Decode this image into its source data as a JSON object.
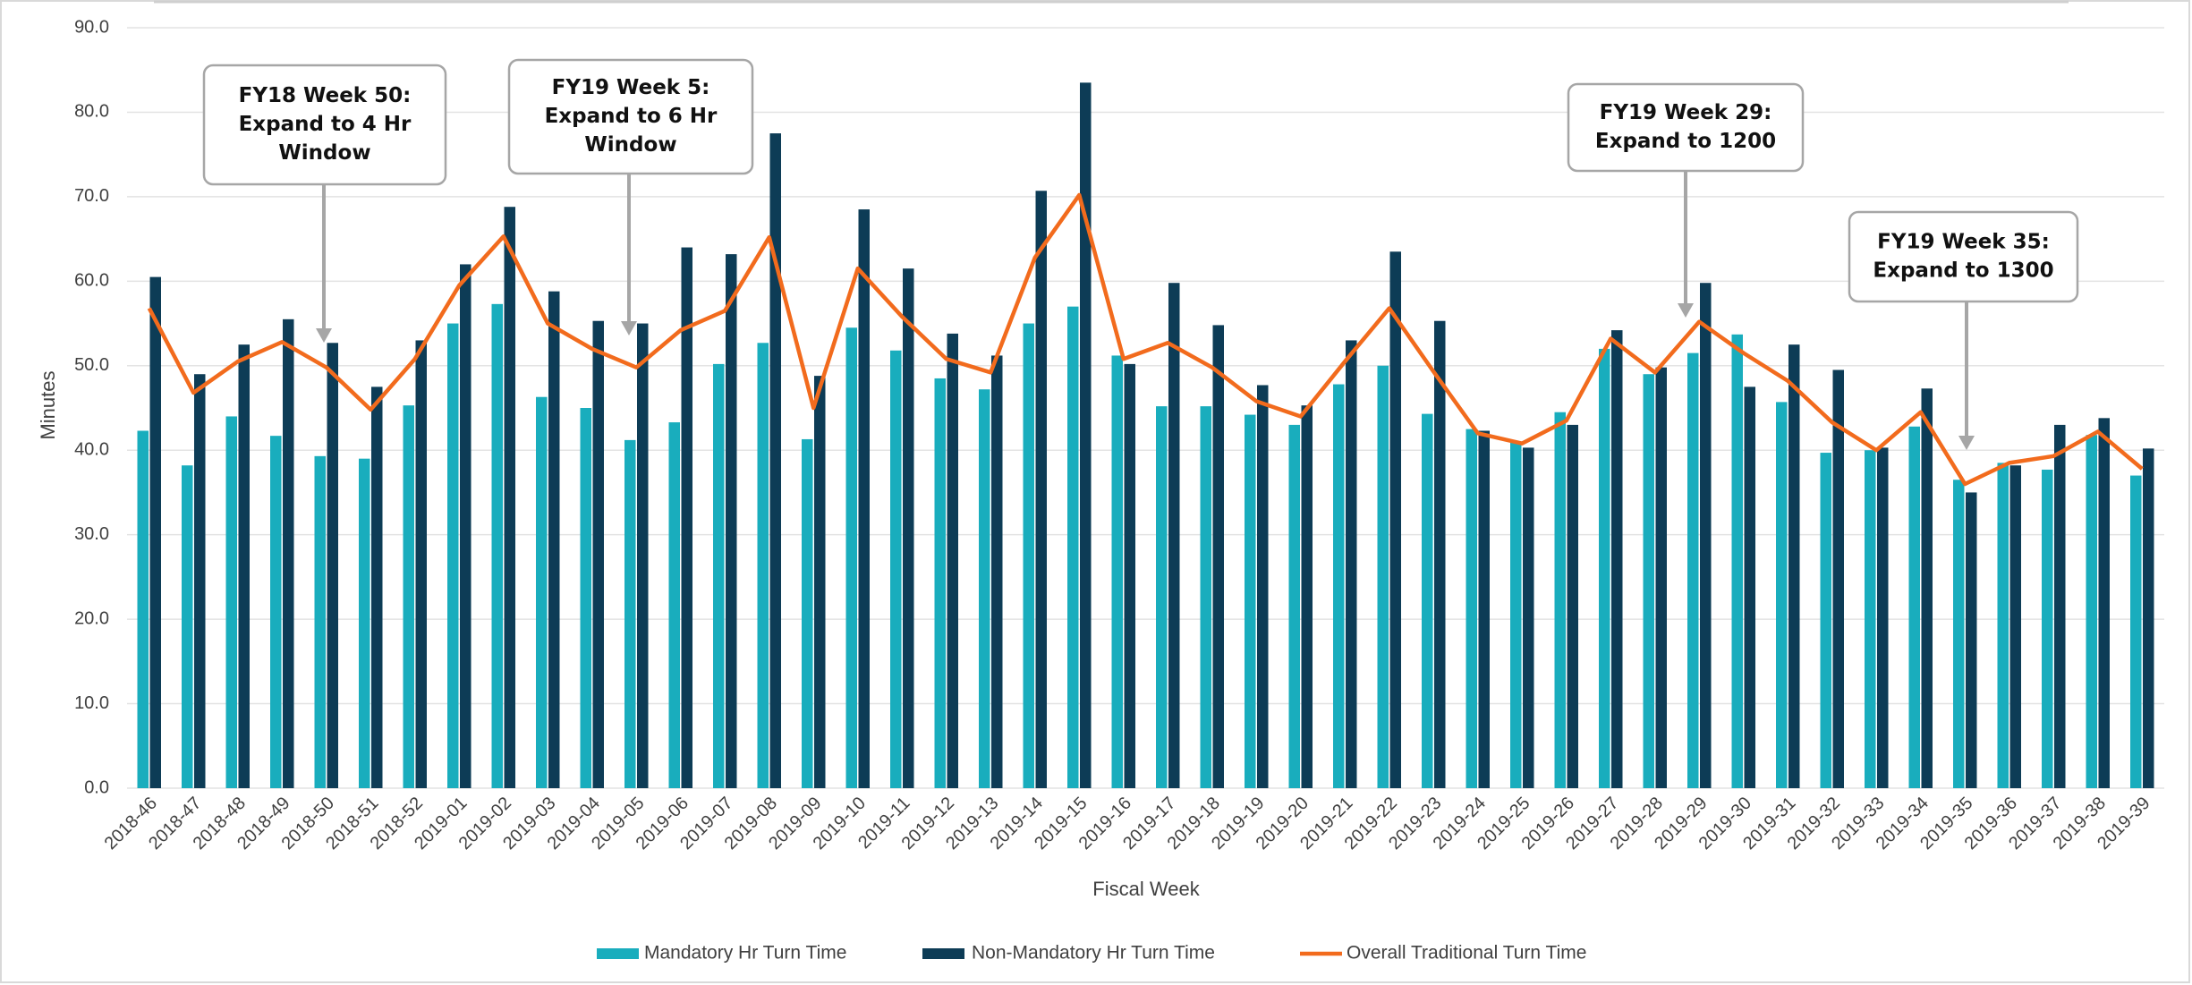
{
  "chart_data": {
    "type": "bar",
    "x_label": "Fiscal Week",
    "y_label": "Minutes",
    "categories": [
      "2018-46",
      "2018-47",
      "2018-48",
      "2018-49",
      "2018-50",
      "2018-51",
      "2018-52",
      "2019-01",
      "2019-02",
      "2019-03",
      "2019-04",
      "2019-05",
      "2019-06",
      "2019-07",
      "2019-08",
      "2019-09",
      "2019-10",
      "2019-11",
      "2019-12",
      "2019-13",
      "2019-14",
      "2019-15",
      "2019-16",
      "2019-17",
      "2019-18",
      "2019-19",
      "2019-20",
      "2019-21",
      "2019-22",
      "2019-23",
      "2019-24",
      "2019-25",
      "2019-26",
      "2019-27",
      "2019-28",
      "2019-29",
      "2019-30",
      "2019-31",
      "2019-32",
      "2019-33",
      "2019-34",
      "2019-35",
      "2019-36",
      "2019-37",
      "2019-38",
      "2019-39"
    ],
    "series": [
      {
        "name": "Mandatory Hr Turn Time",
        "type": "bar",
        "color": "#19adbd",
        "values": [
          42.3,
          38.2,
          44.0,
          41.7,
          39.3,
          39.0,
          45.3,
          55.0,
          57.3,
          46.3,
          45.0,
          41.2,
          43.3,
          50.2,
          52.7,
          41.3,
          54.5,
          51.8,
          48.5,
          47.2,
          55.0,
          57.0,
          51.2,
          45.2,
          45.2,
          44.2,
          43.0,
          47.8,
          50.0,
          44.3,
          42.5,
          41.0,
          44.5,
          52.0,
          49.0,
          51.5,
          53.7,
          45.7,
          39.7,
          40.0,
          42.8,
          36.5,
          38.5,
          37.7,
          41.8,
          37.0
        ]
      },
      {
        "name": "Non-Mandatory Hr Turn Time",
        "type": "bar",
        "color": "#0d3c56",
        "values": [
          60.5,
          49.0,
          52.5,
          55.5,
          52.7,
          47.5,
          53.0,
          62.0,
          68.8,
          58.8,
          55.3,
          55.0,
          64.0,
          63.2,
          77.5,
          48.8,
          68.5,
          61.5,
          53.8,
          51.2,
          70.7,
          83.5,
          50.2,
          59.8,
          54.8,
          47.7,
          45.3,
          53.0,
          63.5,
          55.3,
          42.3,
          40.3,
          43.0,
          54.2,
          49.8,
          59.8,
          47.5,
          52.5,
          49.5,
          40.3,
          47.3,
          35.0,
          38.2,
          43.0,
          43.8,
          40.2
        ]
      },
      {
        "name": "Overall Traditional Turn Time",
        "type": "line",
        "color": "#f26b1d",
        "values": [
          56.8,
          46.8,
          50.5,
          52.8,
          49.8,
          44.8,
          50.8,
          59.5,
          65.3,
          55.0,
          52.0,
          49.8,
          54.2,
          56.5,
          65.2,
          45.0,
          61.5,
          55.8,
          50.8,
          49.2,
          62.8,
          70.2,
          50.8,
          52.7,
          49.8,
          45.8,
          44.0,
          50.5,
          56.8,
          49.3,
          42.0,
          40.8,
          43.5,
          53.2,
          49.2,
          55.2,
          51.5,
          48.2,
          43.3,
          40.0,
          44.5,
          36.0,
          38.5,
          39.3,
          42.2,
          37.8
        ]
      }
    ],
    "ylim": [
      0,
      90
    ],
    "yticks": [
      {
        "value": 0,
        "label": "0.0"
      },
      {
        "value": 10,
        "label": "10.0"
      },
      {
        "value": 20,
        "label": "20.0"
      },
      {
        "value": 30,
        "label": "30.0"
      },
      {
        "value": 40,
        "label": "40.0"
      },
      {
        "value": 50,
        "label": "50.0"
      },
      {
        "value": 60,
        "label": "60.0"
      },
      {
        "value": 70,
        "label": "70.0"
      },
      {
        "value": 80,
        "label": "80.0"
      },
      {
        "value": 90,
        "label": "90.0"
      }
    ],
    "grid": true,
    "legend": "bottom",
    "annotations": [
      {
        "lines": [
          "FY18 Week 50:",
          "Expand to 4 Hr",
          "Window"
        ]
      },
      {
        "lines": [
          "FY19 Week 5:",
          "Expand to 6 Hr",
          "Window"
        ]
      },
      {
        "lines": [
          "FY19 Week 29:",
          "Expand to 1200"
        ]
      },
      {
        "lines": [
          "FY19 Week 35:",
          "Expand to 1300"
        ]
      }
    ]
  }
}
